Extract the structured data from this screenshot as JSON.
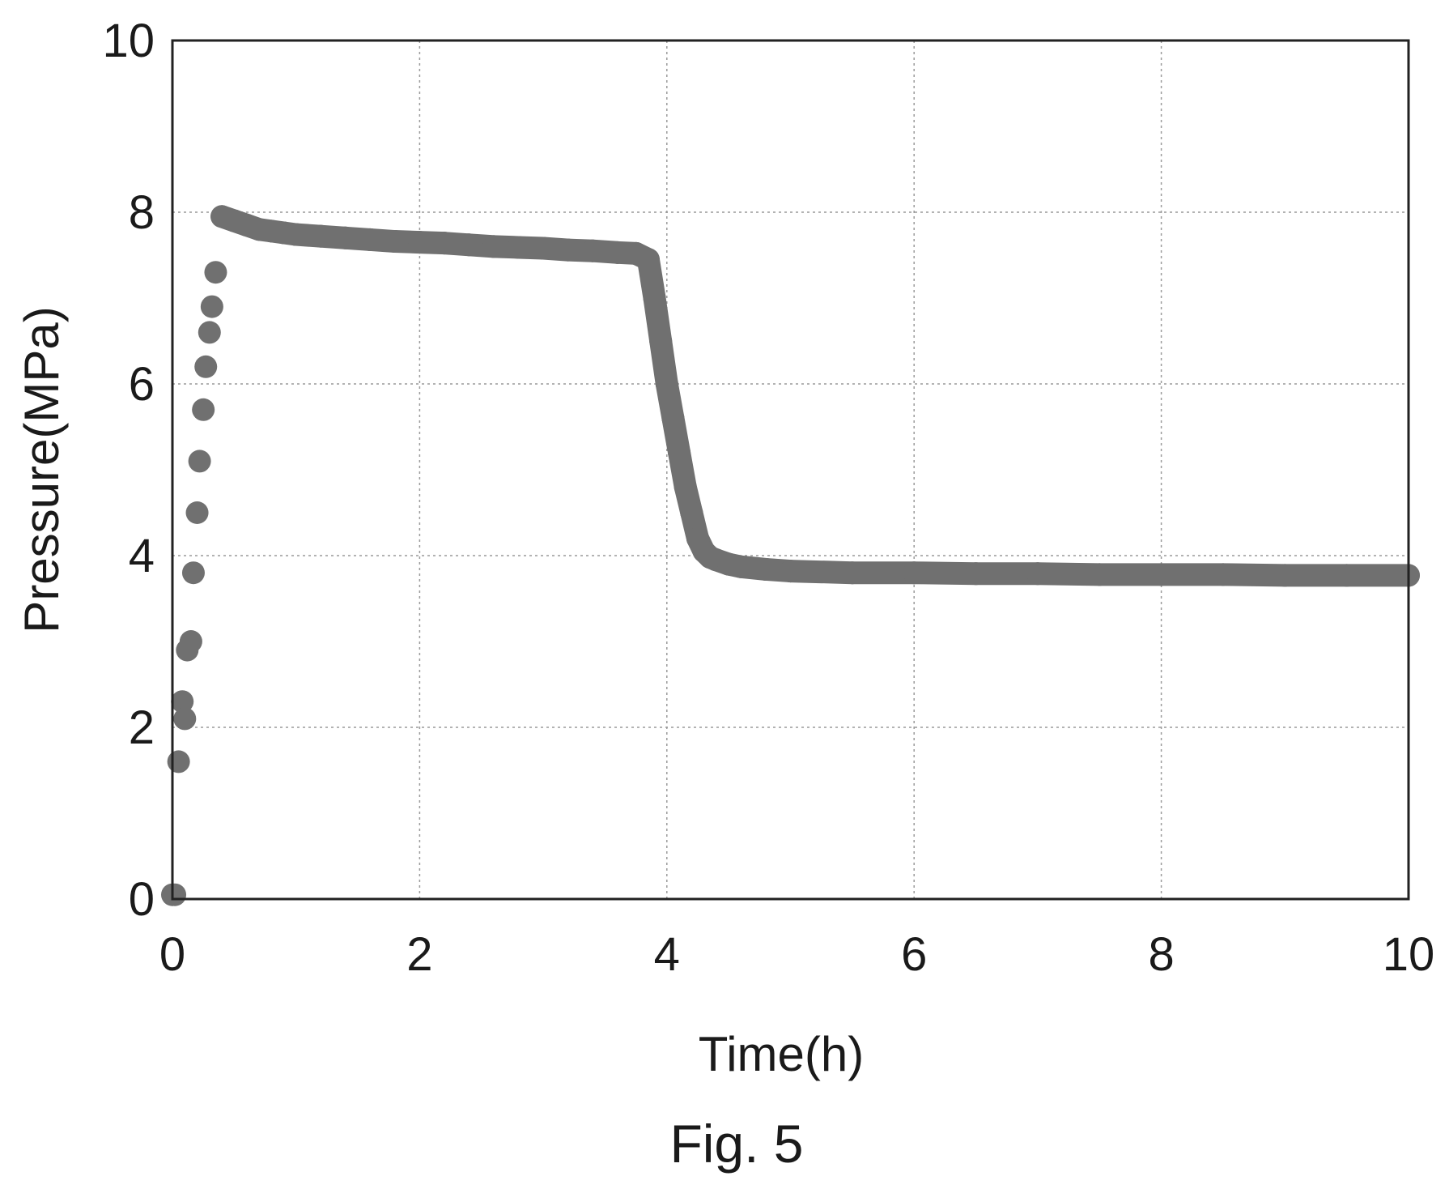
{
  "figure": {
    "caption": "Fig. 5"
  },
  "colors": {
    "marker": "#707070",
    "axis": "#222222",
    "grid": "#9a9a9a"
  },
  "chart_data": {
    "type": "scatter",
    "title": "",
    "xlabel": "Time(h)",
    "ylabel": "Pressure(MPa)",
    "xlim": [
      0,
      10
    ],
    "ylim": [
      0,
      10
    ],
    "xticks": [
      0,
      2,
      4,
      6,
      8,
      10
    ],
    "yticks": [
      0,
      2,
      4,
      6,
      8,
      10
    ],
    "grid": true,
    "series": [
      {
        "x": [
          0.0,
          0.02,
          0.05,
          0.08,
          0.1,
          0.12,
          0.15,
          0.17,
          0.2,
          0.22,
          0.25,
          0.27,
          0.3,
          0.32,
          0.35,
          0.4,
          0.5,
          0.6,
          0.7,
          0.8,
          0.9,
          1.0,
          1.2,
          1.4,
          1.6,
          1.8,
          2.0,
          2.2,
          2.4,
          2.6,
          2.8,
          3.0,
          3.2,
          3.4,
          3.6,
          3.75,
          3.85,
          3.9,
          3.95,
          4.0,
          4.05,
          4.1,
          4.15,
          4.2,
          4.25,
          4.3,
          4.35,
          4.4,
          4.5,
          4.6,
          4.8,
          5.0,
          5.5,
          6.0,
          6.5,
          7.0,
          7.5,
          8.0,
          8.5,
          9.0,
          9.5,
          10.0
        ],
        "y": [
          0.05,
          0.05,
          1.6,
          2.3,
          2.1,
          2.9,
          3.0,
          3.8,
          4.5,
          5.1,
          5.7,
          6.2,
          6.6,
          6.9,
          7.3,
          7.95,
          7.9,
          7.85,
          7.8,
          7.78,
          7.76,
          7.74,
          7.72,
          7.7,
          7.68,
          7.66,
          7.65,
          7.64,
          7.62,
          7.6,
          7.59,
          7.58,
          7.56,
          7.55,
          7.53,
          7.52,
          7.45,
          7.0,
          6.5,
          6.0,
          5.6,
          5.2,
          4.8,
          4.5,
          4.2,
          4.05,
          3.98,
          3.95,
          3.9,
          3.87,
          3.84,
          3.82,
          3.8,
          3.8,
          3.79,
          3.79,
          3.78,
          3.78,
          3.78,
          3.77,
          3.77,
          3.77
        ]
      }
    ]
  }
}
